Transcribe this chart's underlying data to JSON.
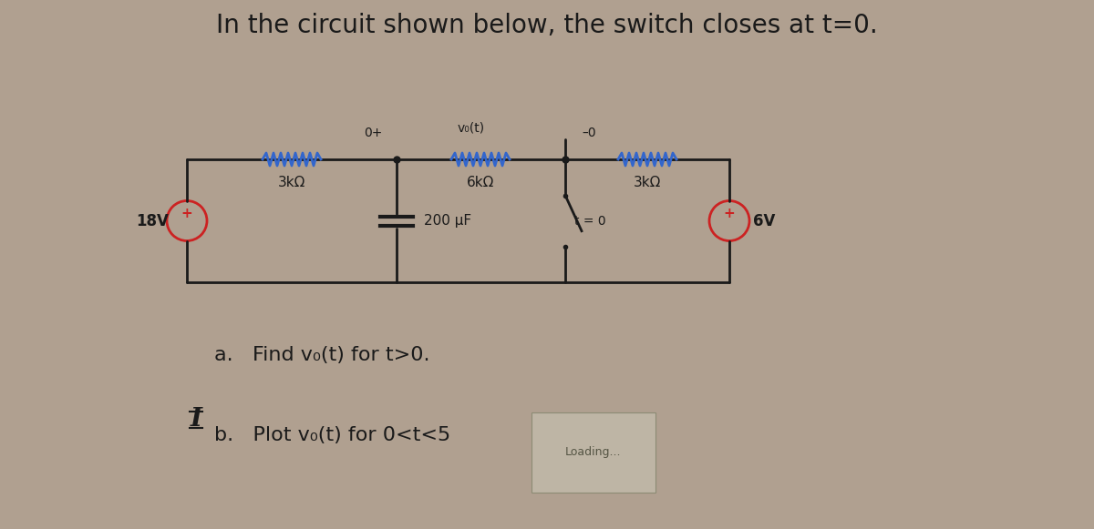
{
  "title": "In the circuit shown below, the switch closes at t=0.",
  "title_fontsize": 20,
  "bg_color": "#b0a090",
  "text_color": "#1a1a1a",
  "circuit": {
    "node_label_top": "v₀(t)",
    "node_label_plus": "0+",
    "node_label_minus": "–0",
    "R1": "3kΩ",
    "R2": "6kΩ",
    "R3": "3kΩ",
    "C1": "200 μF",
    "V1": "18V",
    "V2": "6V",
    "switch_label": "t = 0"
  },
  "part_a": "a.   Find v₀(t) for t>0.",
  "part_b": "b.   Plot v₀(t) for 0<t<5",
  "part_b_suffix": "Loading...",
  "I_label": "I",
  "resistor_color": "#3366cc",
  "wire_color": "#1a1a1a",
  "source_color": "#cc2222"
}
